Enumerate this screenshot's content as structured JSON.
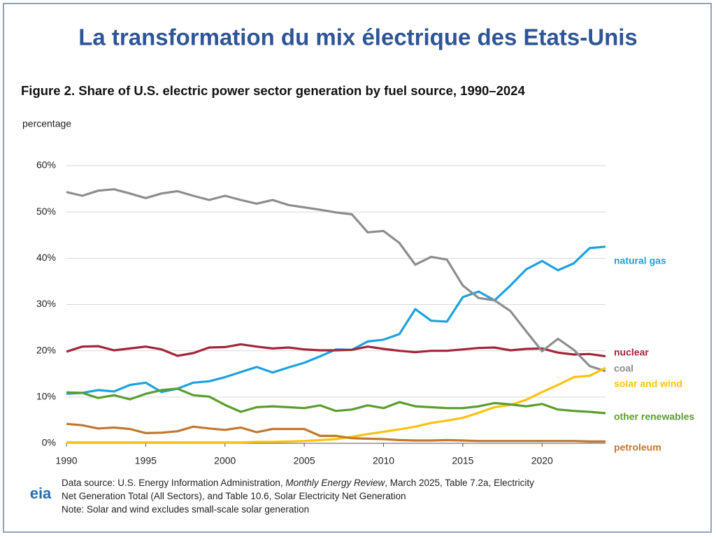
{
  "heading": "La transformation du mix électrique des Etats-Unis",
  "chart_data": {
    "type": "line",
    "title": "Figure 2. Share of U.S. electric power sector generation by fuel source, 1990–2024",
    "y_label": "percentage",
    "logo": "eia",
    "source": [
      "Data source: U.S. Energy Information Administration, ",
      "Monthly Energy Review",
      ", March 2025, Table 7.2a, Electricity",
      "Net Generation Total (All Sectors), and Table 10.6, Solar Electricity Net Generation"
    ],
    "note": "Note: Solar and wind excludes small-scale solar generation",
    "x": [
      1990,
      1991,
      1992,
      1993,
      1994,
      1995,
      1996,
      1997,
      1998,
      1999,
      2000,
      2001,
      2002,
      2003,
      2004,
      2005,
      2006,
      2007,
      2008,
      2009,
      2010,
      2011,
      2012,
      2013,
      2014,
      2015,
      2016,
      2017,
      2018,
      2019,
      2020,
      2021,
      2022,
      2023,
      2024
    ],
    "xlim": [
      1990,
      2024
    ],
    "xticks": [
      1990,
      1995,
      2000,
      2005,
      2010,
      2015,
      2020
    ],
    "ylim": [
      0,
      60
    ],
    "yticks": [
      {
        "value": 0,
        "label": "0%"
      },
      {
        "value": 10,
        "label": "10%"
      },
      {
        "value": 20,
        "label": "20%"
      },
      {
        "value": 30,
        "label": "30%"
      },
      {
        "value": 40,
        "label": "40%"
      },
      {
        "value": 50,
        "label": "50%"
      },
      {
        "value": 60,
        "label": "60%"
      }
    ],
    "grid": true,
    "series": [
      {
        "name": "natural gas",
        "color": "#1ba2e0",
        "values": [
          10.7,
          10.9,
          11.5,
          11.2,
          12.6,
          13.1,
          11.1,
          11.8,
          13.1,
          13.4,
          14.3,
          15.4,
          16.5,
          15.3,
          16.4,
          17.4,
          18.8,
          20.3,
          20.2,
          22.0,
          22.4,
          23.6,
          29.0,
          26.5,
          26.3,
          31.6,
          32.8,
          30.9,
          34.1,
          37.6,
          39.4,
          37.4,
          38.9,
          42.2,
          42.5
        ]
      },
      {
        "name": "nuclear",
        "color": "#a4243b",
        "values": [
          19.8,
          20.9,
          21.0,
          20.1,
          20.5,
          20.9,
          20.3,
          18.9,
          19.5,
          20.7,
          20.8,
          21.4,
          20.9,
          20.5,
          20.7,
          20.3,
          20.1,
          20.1,
          20.2,
          20.9,
          20.4,
          20.0,
          19.7,
          20.0,
          20.0,
          20.3,
          20.6,
          20.7,
          20.1,
          20.4,
          20.5,
          19.6,
          19.2,
          19.3,
          18.8
        ]
      },
      {
        "name": "coal",
        "color": "#8d8d8d",
        "values": [
          54.3,
          53.5,
          54.6,
          54.9,
          54.0,
          53.0,
          54.0,
          54.5,
          53.5,
          52.6,
          53.5,
          52.6,
          51.8,
          52.6,
          51.5,
          51.0,
          50.5,
          49.9,
          49.5,
          45.6,
          45.9,
          43.3,
          38.6,
          40.3,
          39.7,
          34.1,
          31.4,
          30.9,
          28.6,
          24.2,
          19.9,
          22.6,
          20.2,
          16.7,
          15.6
        ]
      },
      {
        "name": "solar and wind",
        "color": "#fdc20f",
        "values": [
          0.2,
          0.2,
          0.2,
          0.2,
          0.2,
          0.2,
          0.2,
          0.2,
          0.2,
          0.2,
          0.2,
          0.2,
          0.3,
          0.3,
          0.4,
          0.5,
          0.7,
          0.9,
          1.4,
          2.0,
          2.5,
          3.0,
          3.6,
          4.4,
          4.9,
          5.5,
          6.6,
          7.8,
          8.3,
          9.4,
          11.1,
          12.6,
          14.3,
          14.6,
          16.3
        ]
      },
      {
        "name": "other renewables",
        "color": "#5a9e2f",
        "values": [
          11.0,
          10.9,
          9.8,
          10.4,
          9.5,
          10.7,
          11.5,
          11.8,
          10.4,
          10.1,
          8.3,
          6.8,
          7.8,
          8.0,
          7.8,
          7.6,
          8.2,
          7.0,
          7.3,
          8.2,
          7.6,
          8.9,
          8.0,
          7.8,
          7.6,
          7.6,
          8.0,
          8.7,
          8.4,
          8.0,
          8.5,
          7.3,
          7.0,
          6.8,
          6.5
        ]
      },
      {
        "name": "petroleum",
        "color": "#c07832",
        "values": [
          4.2,
          3.9,
          3.2,
          3.4,
          3.1,
          2.2,
          2.3,
          2.6,
          3.6,
          3.2,
          2.9,
          3.4,
          2.4,
          3.1,
          3.1,
          3.1,
          1.6,
          1.6,
          1.1,
          1.0,
          0.9,
          0.7,
          0.6,
          0.6,
          0.7,
          0.6,
          0.5,
          0.5,
          0.5,
          0.5,
          0.5,
          0.5,
          0.5,
          0.4,
          0.4
        ]
      }
    ]
  }
}
